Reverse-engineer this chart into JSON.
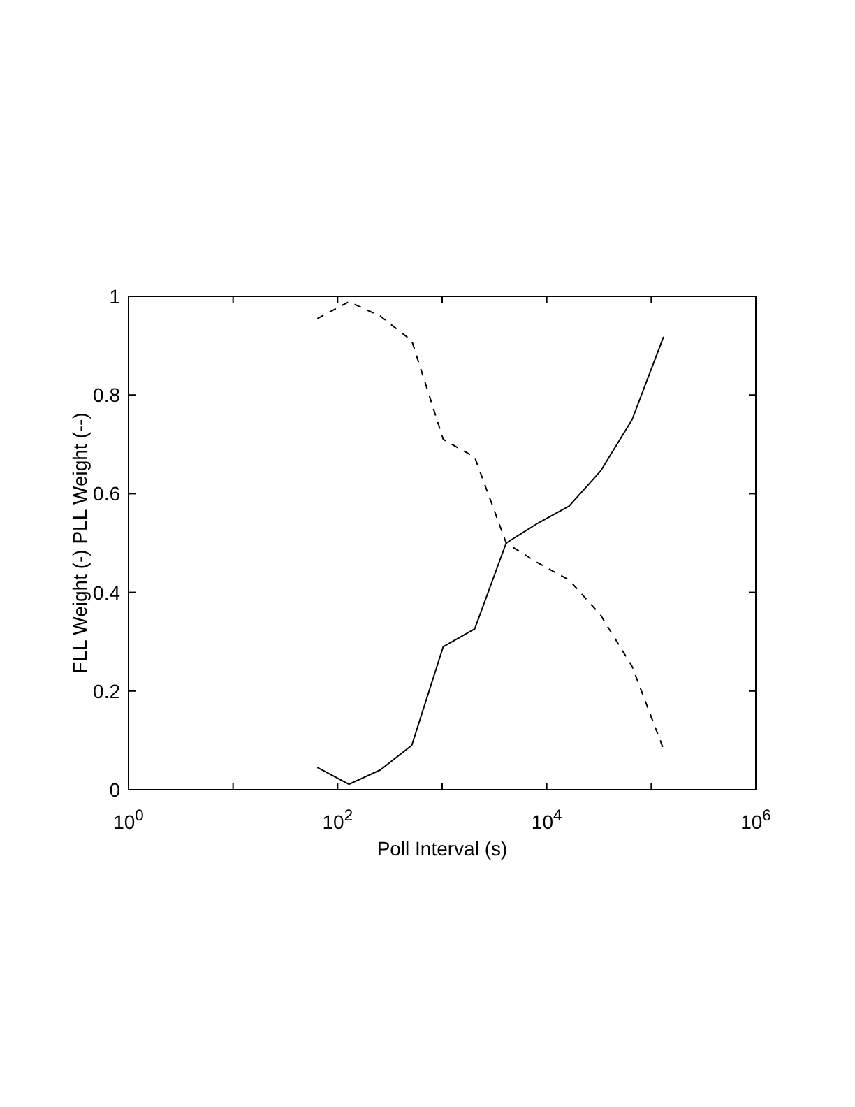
{
  "chart_data": {
    "type": "line",
    "xlabel": "Poll Interval (s)",
    "ylabel": "FLL Weight (-) PLL Weight (--)",
    "log": "x",
    "xlim": [
      1,
      1000000
    ],
    "ylim": [
      0,
      1
    ],
    "xticks": [
      {
        "value": 1,
        "label": "10$^{0}$"
      },
      {
        "value": 10,
        "label": null
      },
      {
        "value": 100,
        "label": "10$^{2}$"
      },
      {
        "value": 1000,
        "label": null
      },
      {
        "value": 10000,
        "label": "10$^{4}$"
      },
      {
        "value": 100000,
        "label": null
      },
      {
        "value": 1000000,
        "label": "10$^{6}$"
      }
    ],
    "yticks": [
      0,
      0.2,
      0.4,
      0.6,
      0.8,
      1
    ],
    "x": [
      64,
      128,
      256,
      512,
      1024,
      2048,
      4096,
      8192,
      16384,
      32768,
      65536,
      131072
    ],
    "series": [
      {
        "color": "#000000",
        "line_style": "solid",
        "values": [
          0.045,
          0.011,
          0.04,
          0.09,
          0.29,
          0.326,
          0.5,
          0.54,
          0.575,
          0.646,
          0.75,
          0.918
        ]
      },
      {
        "color": "#000000",
        "line_style": "dashed",
        "values": [
          0.955,
          0.989,
          0.96,
          0.91,
          0.71,
          0.674,
          0.5,
          0.46,
          0.425,
          0.354,
          0.25,
          0.082
        ]
      }
    ]
  }
}
